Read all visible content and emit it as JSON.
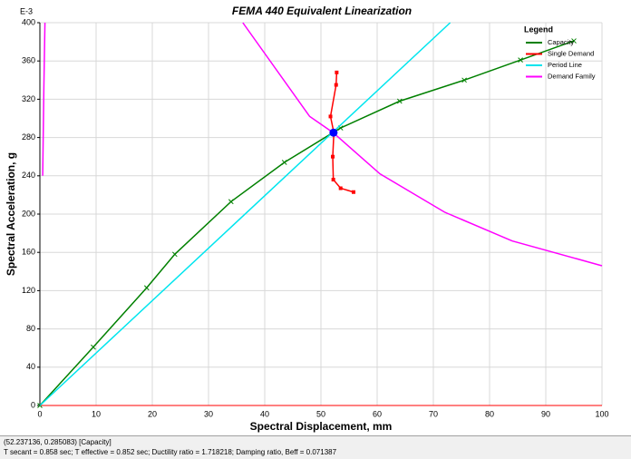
{
  "chart_data": {
    "type": "line",
    "title": "FEMA 440 Equivalent Linearization",
    "y_scale_label": "E-3",
    "xlabel": "Spectral Displacement, mm",
    "ylabel": "Spectral Acceleration, g",
    "legend_title": "Legend",
    "legend": "top-right",
    "grid": true,
    "xlim": [
      0,
      100
    ],
    "xticks": [
      0,
      10,
      20,
      30,
      40,
      50,
      60,
      70,
      80,
      90,
      100
    ],
    "ylim": [
      0,
      400
    ],
    "yticks": [
      0,
      40,
      80,
      120,
      160,
      200,
      240,
      280,
      320,
      360,
      400
    ],
    "series": [
      {
        "name": "Capacity",
        "color": "#008000",
        "marker": "x",
        "x": [
          0,
          9.5,
          19,
          24,
          34,
          43.5,
          53.5,
          64,
          75.5,
          85.5,
          95
        ],
        "values": [
          0,
          61,
          123,
          158,
          213,
          254,
          290,
          318,
          340,
          361,
          381
        ]
      },
      {
        "name": "Single Demand",
        "color": "#ff0000",
        "marker": "square",
        "x": [
          52.8,
          52.7,
          51.7,
          52.3,
          52.1,
          52.2,
          53.5,
          55.8
        ],
        "values": [
          348,
          335,
          302,
          285,
          260,
          236,
          227,
          223
        ]
      },
      {
        "name": "Period Line",
        "color": "#00e5ee",
        "x": [
          0,
          73
        ],
        "values": [
          0,
          400
        ]
      },
      {
        "name": "Demand Family",
        "color": "#ff00ff",
        "x": [
          0.5,
          0.7,
          0.9,
          null,
          36.1,
          48,
          52.2,
          60.5,
          72,
          84,
          100
        ],
        "values": [
          240,
          330,
          400,
          null,
          400,
          302,
          285,
          242,
          202,
          172,
          146
        ]
      }
    ],
    "performance_point": {
      "x": 52.237136,
      "y": 285.083,
      "color": "#0000ff"
    },
    "annotations": [
      "(52.237136, 0.285083)  [Capacity]",
      "T secant = 0.858 sec;  T effective = 0.852 sec;  Ductility ratio = 1.718218;  Damping ratio, Beff = 0.071387"
    ]
  }
}
